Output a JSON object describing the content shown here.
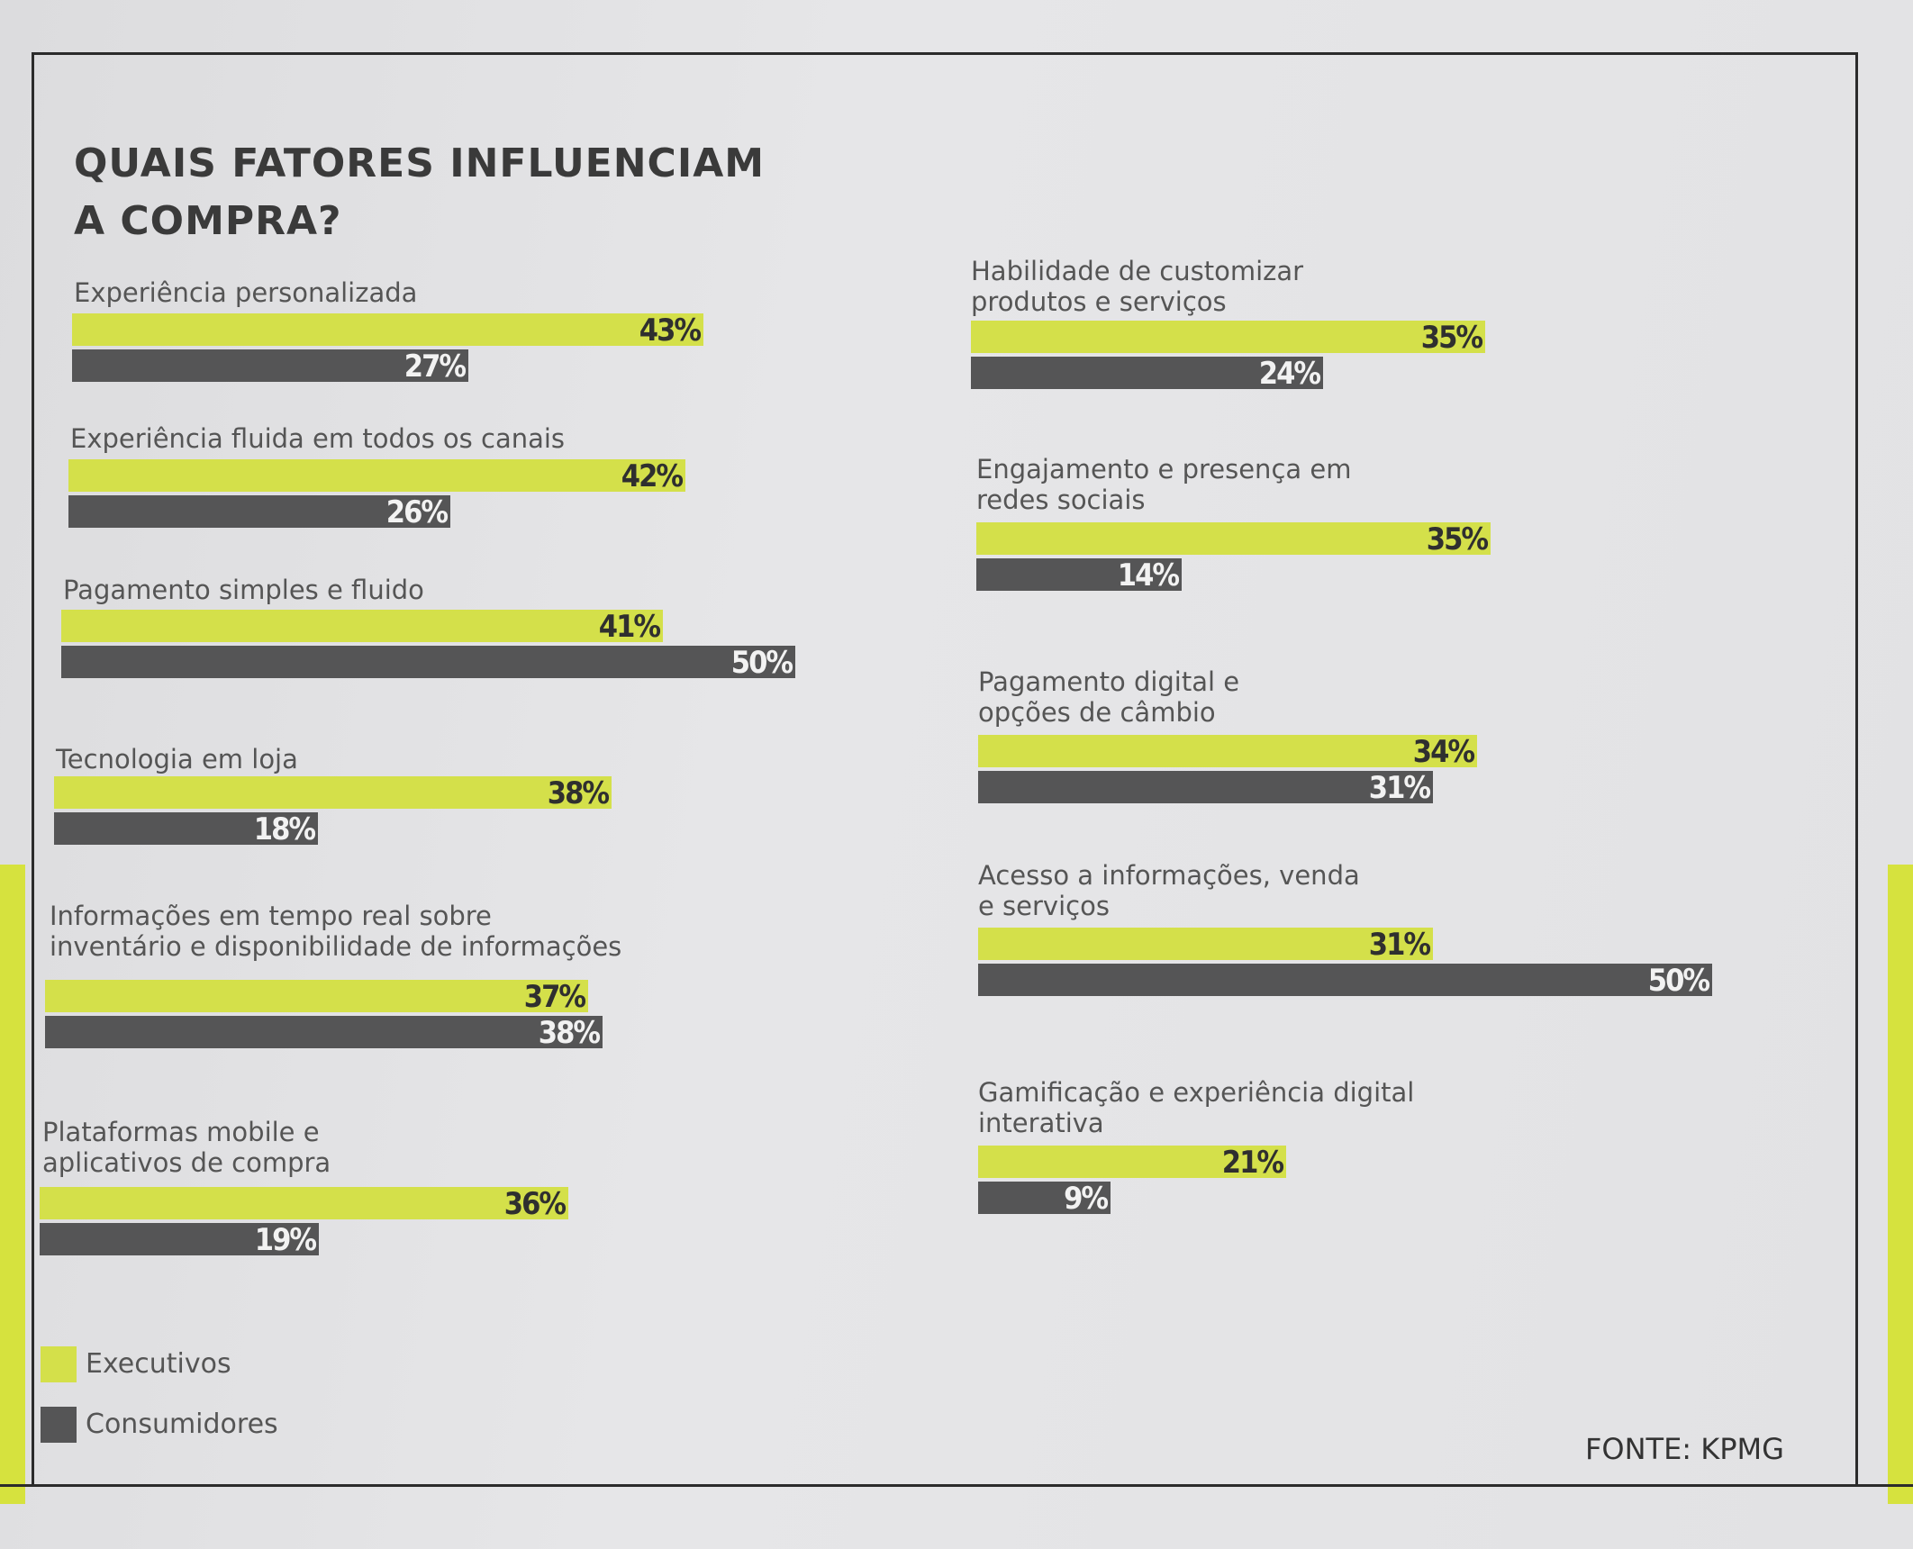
{
  "title_lines": [
    "QUAIS FATORES INFLUENCIAM",
    "A COMPRA?"
  ],
  "source": "FONTE: KPMG",
  "colors": {
    "executivos": "#d4e04a",
    "consumidores": "#555556",
    "accent": "#d6e23e"
  },
  "legend": [
    {
      "label": "Executivos",
      "color": "#d4e04a"
    },
    {
      "label": "Consumidores",
      "color": "#555556"
    }
  ],
  "chart_data": {
    "type": "bar",
    "orientation": "horizontal",
    "title": "QUAIS FATORES INFLUENCIAM A COMPRA?",
    "unit": "%",
    "series_names": [
      "Executivos",
      "Consumidores"
    ],
    "categories": [
      {
        "label": "Experiência personalizada",
        "executivos": 43,
        "consumidores": 27
      },
      {
        "label": "Experiência fluida em todos os canais",
        "executivos": 42,
        "consumidores": 26
      },
      {
        "label": "Pagamento simples e fluido",
        "executivos": 41,
        "consumidores": 50
      },
      {
        "label": "Tecnologia em loja",
        "executivos": 38,
        "consumidores": 18
      },
      {
        "label": "Informações em tempo real sobre\ninventário e disponibilidade de informações",
        "executivos": 37,
        "consumidores": 38
      },
      {
        "label": "Plataformas mobile e\naplicativos de compra",
        "executivos": 36,
        "consumidores": 19
      },
      {
        "label": "Habilidade de customizar\nprodutos e serviços",
        "executivos": 35,
        "consumidores": 24
      },
      {
        "label": "Engajamento e presença em\nredes sociais",
        "executivos": 35,
        "consumidores": 14
      },
      {
        "label": "Pagamento digital e\nopções de câmbio",
        "executivos": 34,
        "consumidores": 31
      },
      {
        "label": "Acesso a informações, venda\ne serviços",
        "executivos": 31,
        "consumidores": 50
      },
      {
        "label": "Gamificação e experiência digital\ninterativa",
        "executivos": 21,
        "consumidores": 9
      }
    ]
  }
}
